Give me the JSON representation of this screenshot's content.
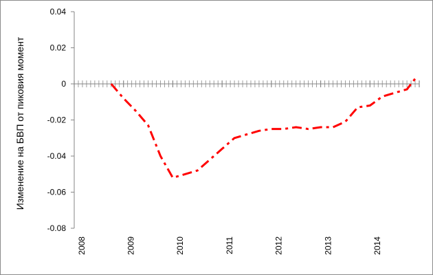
{
  "chart_data": {
    "type": "line",
    "title": "",
    "xlabel": "",
    "ylabel": "Изменение на БВП от пиковия момент",
    "ylim": [
      -0.08,
      0.04
    ],
    "yticks": [
      "0.04",
      "0.02",
      "0",
      "-0.02",
      "-0.04",
      "-0.06",
      "-0.08"
    ],
    "xlim": [
      2008.0,
      2015.0
    ],
    "xticks": [
      "2008",
      "2009",
      "2010",
      "2011",
      "2012",
      "2013",
      "2014"
    ],
    "x_minor_ticks_per_year": 12,
    "grid": false,
    "legend": "none",
    "series": [
      {
        "color": "#ff0000",
        "style": "dash-dot",
        "x": [
          2008.75,
          2009.0,
          2009.25,
          2009.5,
          2009.75,
          2010.0,
          2010.25,
          2010.5,
          2010.75,
          2011.0,
          2011.25,
          2011.5,
          2011.75,
          2012.0,
          2012.25,
          2012.5,
          2012.75,
          2013.0,
          2013.25,
          2013.5,
          2013.75,
          2014.0,
          2014.25,
          2014.5,
          2014.75,
          2014.92
        ],
        "y": [
          0.0,
          -0.008,
          -0.015,
          -0.023,
          -0.04,
          -0.052,
          -0.05,
          -0.048,
          -0.042,
          -0.036,
          -0.03,
          -0.028,
          -0.026,
          -0.025,
          -0.025,
          -0.024,
          -0.025,
          -0.024,
          -0.024,
          -0.021,
          -0.013,
          -0.012,
          -0.007,
          -0.005,
          -0.003,
          0.003
        ]
      }
    ]
  }
}
